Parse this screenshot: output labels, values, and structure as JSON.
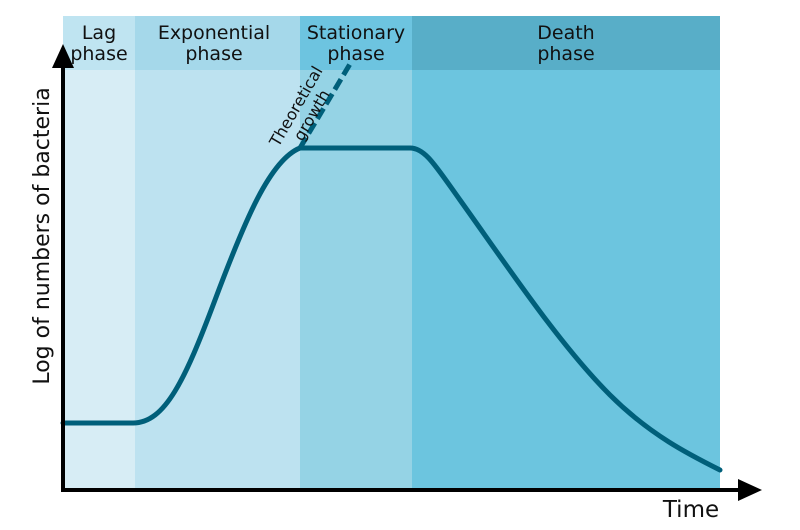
{
  "phases": [
    {
      "label": [
        "Lag",
        "phase"
      ]
    },
    {
      "label": [
        "Exponential",
        "phase"
      ]
    },
    {
      "label": [
        "Stationary",
        "phase"
      ]
    },
    {
      "label": [
        "Death",
        "phase"
      ]
    }
  ],
  "annotation": [
    "Theoretical",
    "growth"
  ],
  "y_axis_label": "Log of numbers of bacteria",
  "x_axis_label": "Time"
}
